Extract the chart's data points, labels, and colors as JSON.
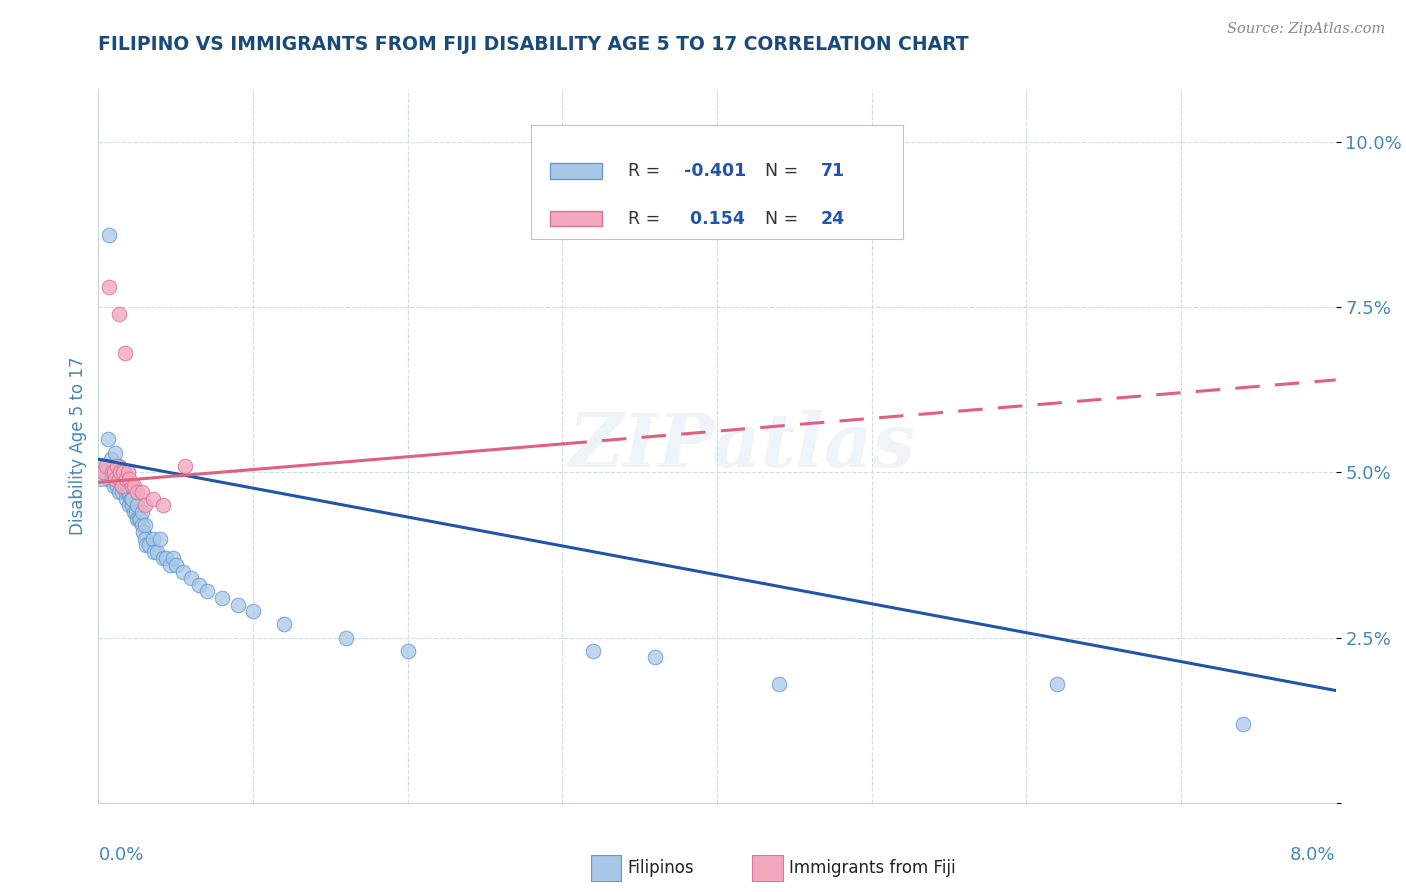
{
  "title": "FILIPINO VS IMMIGRANTS FROM FIJI DISABILITY AGE 5 TO 17 CORRELATION CHART",
  "source": "Source: ZipAtlas.com",
  "ylabel": "Disability Age 5 to 17",
  "ytick_vals": [
    0.0,
    2.5,
    5.0,
    7.5,
    10.0
  ],
  "ytick_labels": [
    "",
    "2.5%",
    "5.0%",
    "7.5%",
    "10.0%"
  ],
  "xlim": [
    0.0,
    8.0
  ],
  "ylim": [
    0.0,
    10.8
  ],
  "watermark": "ZIPatlas",
  "blue_color": "#a8c8e8",
  "blue_edge": "#6699cc",
  "pink_color": "#f4a8be",
  "pink_edge": "#d4789a",
  "line_blue": "#2255aa",
  "line_pink": "#e06080",
  "title_color": "#1a4a7a",
  "axis_label_color": "#4488bb",
  "blue_scatter_x": [
    0.02,
    0.04,
    0.06,
    0.06,
    0.07,
    0.08,
    0.08,
    0.09,
    0.1,
    0.1,
    0.11,
    0.11,
    0.12,
    0.12,
    0.13,
    0.13,
    0.14,
    0.14,
    0.15,
    0.15,
    0.15,
    0.16,
    0.16,
    0.17,
    0.17,
    0.18,
    0.18,
    0.19,
    0.19,
    0.2,
    0.2,
    0.21,
    0.22,
    0.22,
    0.23,
    0.24,
    0.25,
    0.25,
    0.26,
    0.27,
    0.28,
    0.28,
    0.29,
    0.3,
    0.3,
    0.31,
    0.33,
    0.35,
    0.36,
    0.38,
    0.4,
    0.42,
    0.44,
    0.46,
    0.48,
    0.5,
    0.55,
    0.6,
    0.65,
    0.7,
    0.8,
    0.9,
    1.0,
    1.2,
    1.6,
    2.0,
    3.2,
    3.6,
    4.4,
    6.2,
    7.4
  ],
  "blue_scatter_y": [
    5.1,
    5.0,
    4.9,
    5.5,
    8.6,
    4.9,
    5.2,
    5.0,
    4.8,
    5.1,
    4.9,
    5.3,
    5.0,
    4.8,
    5.1,
    4.7,
    4.9,
    5.0,
    4.8,
    5.0,
    4.7,
    4.8,
    4.9,
    4.8,
    5.0,
    4.6,
    4.7,
    4.7,
    4.8,
    4.5,
    4.7,
    4.6,
    4.5,
    4.6,
    4.4,
    4.4,
    4.5,
    4.3,
    4.3,
    4.3,
    4.2,
    4.4,
    4.1,
    4.2,
    4.0,
    3.9,
    3.9,
    4.0,
    3.8,
    3.8,
    4.0,
    3.7,
    3.7,
    3.6,
    3.7,
    3.6,
    3.5,
    3.4,
    3.3,
    3.2,
    3.1,
    3.0,
    2.9,
    2.7,
    2.5,
    2.3,
    2.3,
    2.2,
    1.8,
    1.8,
    1.2
  ],
  "pink_scatter_x": [
    0.03,
    0.05,
    0.07,
    0.09,
    0.1,
    0.11,
    0.12,
    0.13,
    0.13,
    0.14,
    0.15,
    0.16,
    0.17,
    0.18,
    0.19,
    0.2,
    0.22,
    0.23,
    0.25,
    0.28,
    0.3,
    0.35,
    0.42,
    0.56
  ],
  "pink_scatter_y": [
    5.0,
    5.1,
    7.8,
    5.0,
    5.0,
    4.9,
    5.1,
    4.9,
    7.4,
    5.0,
    4.8,
    5.0,
    6.8,
    4.9,
    5.0,
    4.9,
    4.8,
    4.8,
    4.7,
    4.7,
    4.5,
    4.6,
    4.5,
    5.1
  ],
  "blue_trend_x0": 0.0,
  "blue_trend_y0": 5.2,
  "blue_trend_x1": 8.0,
  "blue_trend_y1": 1.7,
  "pink_trend_x0": 0.0,
  "pink_trend_y0": 4.85,
  "pink_trend_x1": 8.0,
  "pink_trend_y1": 6.4,
  "pink_dash_start": 3.0,
  "grid_color": "#d0dce8",
  "spine_color": "#c8d4de"
}
